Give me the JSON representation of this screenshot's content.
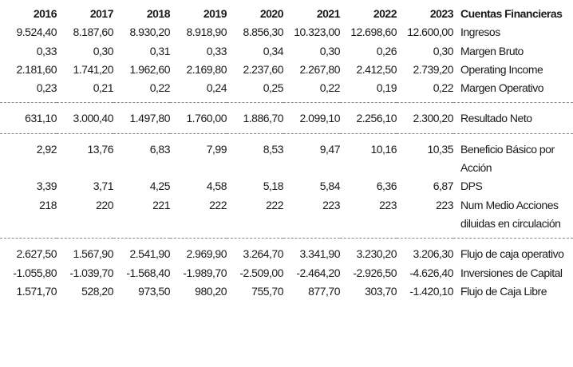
{
  "table": {
    "years": [
      "2016",
      "2017",
      "2018",
      "2019",
      "2020",
      "2021",
      "2022",
      "2023"
    ],
    "label_header": "Cuentas Financieras",
    "groups": [
      {
        "rows": [
          {
            "label": "Ingresos",
            "values": [
              "9.524,40",
              "8.187,60",
              "8.930,20",
              "8.918,90",
              "8.856,30",
              "10.323,00",
              "12.698,60",
              "12.600,00"
            ]
          },
          {
            "label": "Margen Bruto",
            "values": [
              "0,33",
              "0,30",
              "0,31",
              "0,33",
              "0,34",
              "0,30",
              "0,26",
              "0,30"
            ]
          },
          {
            "label": "Operating Income",
            "values": [
              "2.181,60",
              "1.741,20",
              "1.962,60",
              "2.169,80",
              "2.237,60",
              "2.267,80",
              "2.412,50",
              "2.739,20"
            ]
          },
          {
            "label": "Margen Operativo",
            "values": [
              "0,23",
              "0,21",
              "0,22",
              "0,24",
              "0,25",
              "0,22",
              "0,19",
              "0,22"
            ]
          }
        ]
      },
      {
        "rows": [
          {
            "label": "Resultado Neto",
            "values": [
              "631,10",
              "3.000,40",
              "1.497,80",
              "1.760,00",
              "1.886,70",
              "2.099,10",
              "2.256,10",
              "2.300,20"
            ]
          }
        ]
      },
      {
        "rows": [
          {
            "label": "Beneficio Básico por Acción",
            "values": [
              "2,92",
              "13,76",
              "6,83",
              "7,99",
              "8,53",
              "9,47",
              "10,16",
              "10,35"
            ]
          },
          {
            "label": "DPS",
            "values": [
              "3,39",
              "3,71",
              "4,25",
              "4,58",
              "5,18",
              "5,84",
              "6,36",
              "6,87"
            ]
          },
          {
            "label": "Num Medio Acciones diluidas en circulación",
            "values": [
              "218",
              "220",
              "221",
              "222",
              "222",
              "223",
              "223",
              "223"
            ]
          }
        ]
      },
      {
        "rows": [
          {
            "label": "Flujo de caja operativo",
            "values": [
              "2.627,50",
              "1.567,90",
              "2.541,90",
              "2.969,90",
              "3.264,70",
              "3.341,90",
              "3.230,20",
              "3.206,30"
            ]
          },
          {
            "label": "Inversiones de Capital",
            "values": [
              "-1.055,80",
              "-1.039,70",
              "-1.568,40",
              "-1.989,70",
              "-2.509,00",
              "-2.464,20",
              "-2.926,50",
              "-4.626,40"
            ]
          },
          {
            "label": "Flujo de Caja Libre",
            "values": [
              "1.571,70",
              "528,20",
              "973,50",
              "980,20",
              "755,70",
              "877,70",
              "303,70",
              "-1.420,10"
            ]
          }
        ]
      }
    ]
  }
}
